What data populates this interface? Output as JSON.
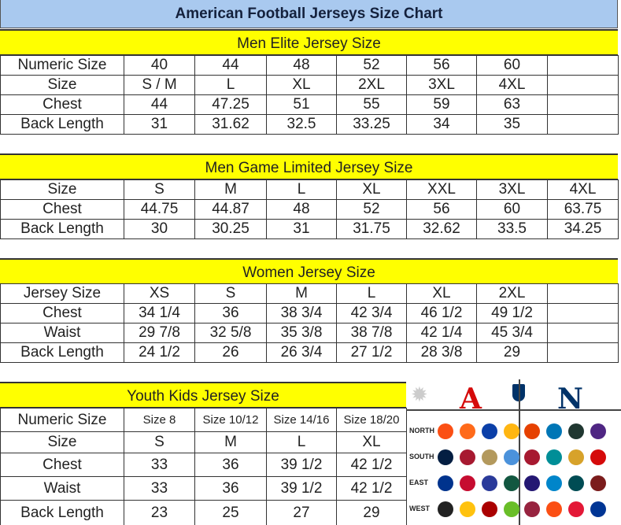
{
  "title": "American Football Jerseys Size Chart",
  "sections": [
    {
      "heading": "Men Elite Jersey Size",
      "rows": [
        [
          "Numeric Size",
          "40",
          "44",
          "48",
          "52",
          "56",
          "60",
          ""
        ],
        [
          "Size",
          "S / M",
          "L",
          "XL",
          "2XL",
          "3XL",
          "4XL",
          ""
        ],
        [
          "Chest",
          "44",
          "47.25",
          "51",
          "55",
          "59",
          "63",
          ""
        ],
        [
          "Back Length",
          "31",
          "31.62",
          "32.5",
          "33.25",
          "34",
          "35",
          ""
        ]
      ]
    },
    {
      "heading": "Men Game Limited Jersey Size",
      "rows": [
        [
          "Size",
          "S",
          "M",
          "L",
          "XL",
          "XXL",
          "3XL",
          "4XL"
        ],
        [
          "Chest",
          "44.75",
          "44.87",
          "48",
          "52",
          "56",
          "60",
          "63.75"
        ],
        [
          "Back Length",
          "30",
          "30.25",
          "31",
          "31.75",
          "32.62",
          "33.5",
          "34.25"
        ]
      ]
    },
    {
      "heading": "Women Jersey Size",
      "rows": [
        [
          "Jersey Size",
          "XS",
          "S",
          "M",
          "L",
          "XL",
          "2XL",
          ""
        ],
        [
          "Chest",
          "34 1/4",
          "36",
          "38 3/4",
          "42 3/4",
          "46 1/2",
          "49 1/2",
          ""
        ],
        [
          "Waist",
          "29 7/8",
          "32 5/8",
          "35 3/8",
          "38 7/8",
          "42 1/4",
          "45 3/4",
          ""
        ],
        [
          "Back Length",
          "24 1/2",
          "26",
          "26 3/4",
          "27 1/2",
          "28 3/8",
          "29",
          ""
        ]
      ]
    },
    {
      "heading": "Youth Kids Jersey Size",
      "rows": [
        [
          "Numeric Size",
          "Size 8",
          "Size 10/12",
          "Size 14/16",
          "Size 18/20"
        ],
        [
          "Size",
          "S",
          "M",
          "L",
          "XL"
        ],
        [
          "Chest",
          "33",
          "36",
          "39 1/2",
          "42 1/2"
        ],
        [
          "Waist",
          "33",
          "36",
          "39 1/2",
          "42 1/2"
        ],
        [
          "Back Length",
          "23",
          "25",
          "27",
          "29"
        ]
      ]
    }
  ],
  "logo_panel": {
    "afc": "A",
    "nfc": "N",
    "divisions": [
      "NORTH",
      "SOUTH",
      "EAST",
      "WEST"
    ],
    "afc_colors": [
      [
        "#fb4f14",
        "#ff6a1a",
        "#0b3fa8",
        "#ffb612"
      ],
      [
        "#041e42",
        "#a71930",
        "#b3995d",
        "#4b92db"
      ],
      [
        "#00338d",
        "#c60c30",
        "#2a3a9a",
        "#125740"
      ],
      [
        "#222222",
        "#ffc20e",
        "#aa0000",
        "#69be28"
      ]
    ],
    "nfc_colors": [
      [
        "#e64100",
        "#0076b6",
        "#203731",
        "#4f2683"
      ],
      [
        "#a71930",
        "#008e97",
        "#d7a22a",
        "#d50a0a"
      ],
      [
        "#241773",
        "#0085ca",
        "#004c54",
        "#7b1c1c"
      ],
      [
        "#97233f",
        "#fb4f14",
        "#e31837",
        "#003594"
      ]
    ],
    "afc_color": "#d50a0a",
    "nfc_color": "#013369"
  }
}
